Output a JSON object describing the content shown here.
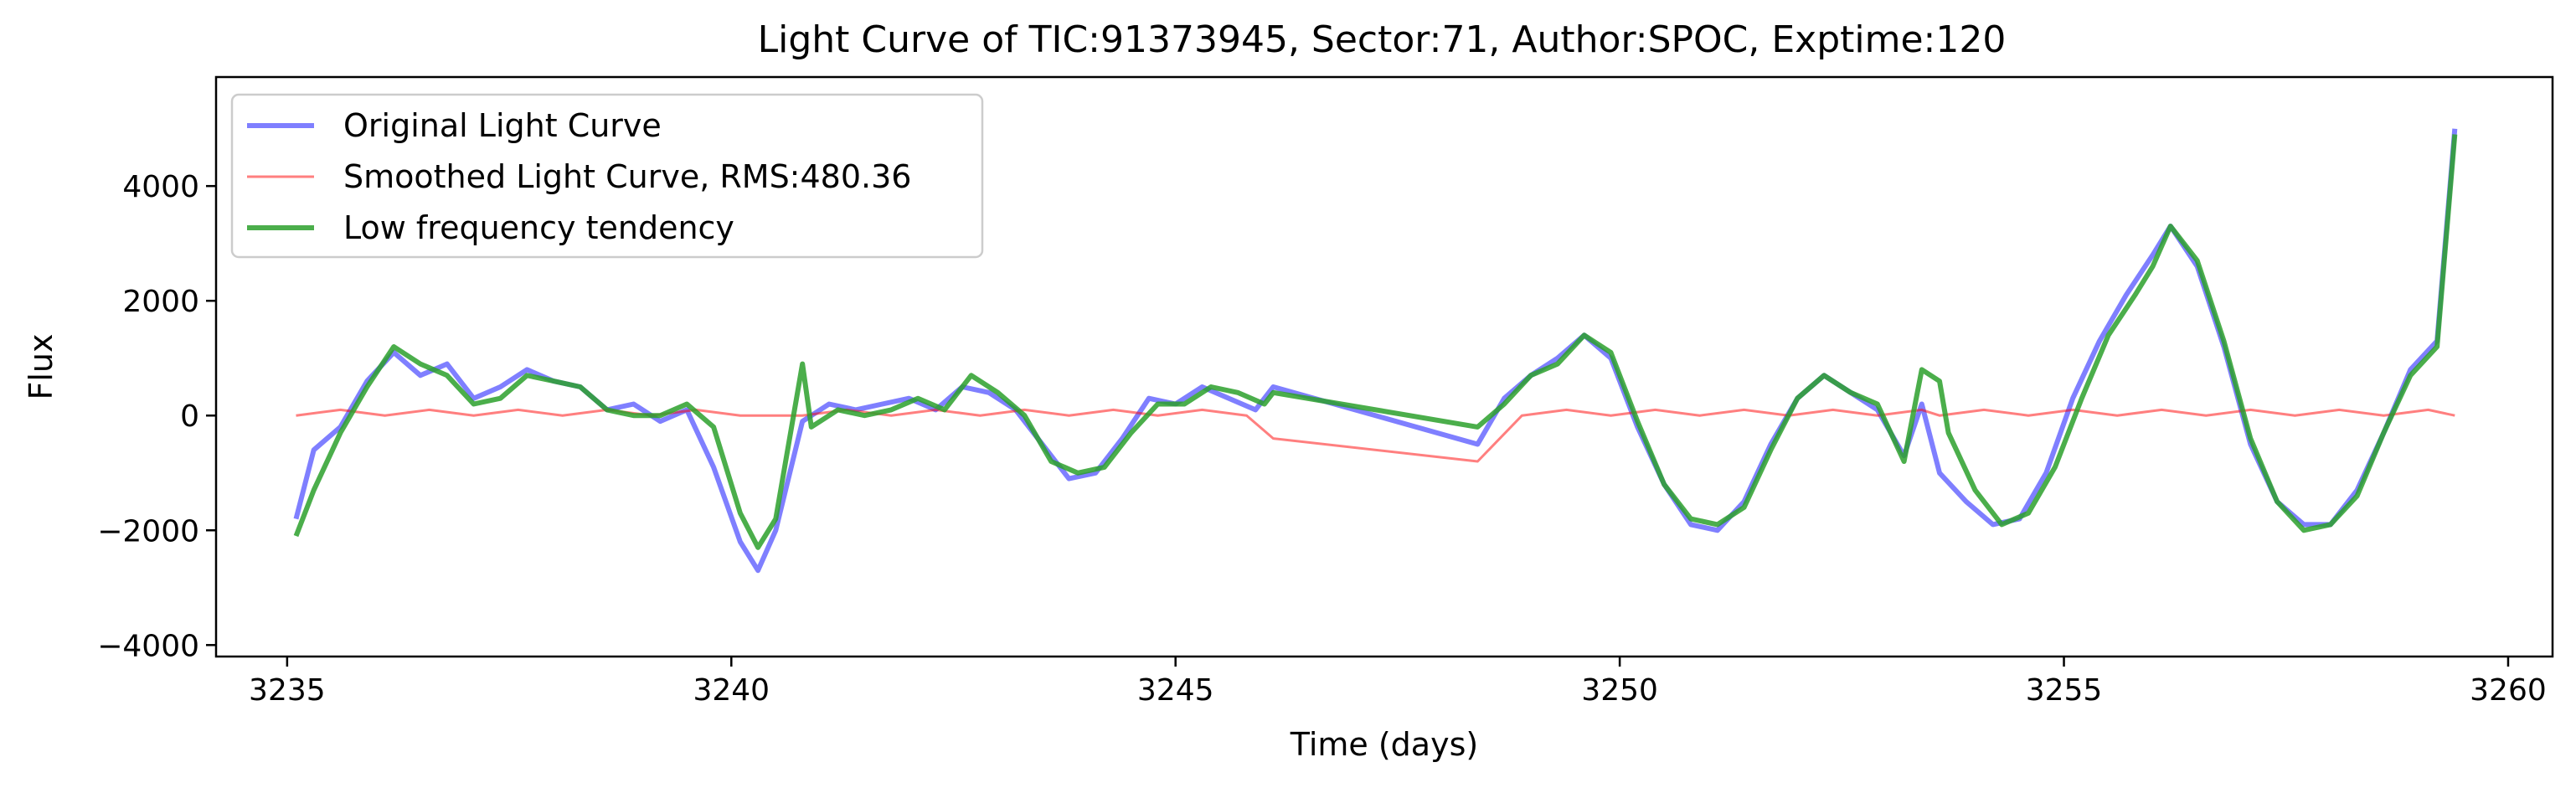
{
  "chart_data": {
    "type": "line",
    "title": "Light Curve of TIC:91373945, Sector:71, Author:SPOC, Exptime:120",
    "xlabel": "Time (days)",
    "ylabel": "Flux",
    "xlim": [
      3234.2,
      3260.5
    ],
    "ylim": [
      -4200,
      5900
    ],
    "xticks": [
      3235,
      3240,
      3245,
      3250,
      3255,
      3260
    ],
    "yticks": [
      -4000,
      -2000,
      0,
      2000,
      4000
    ],
    "grid": false,
    "legend_position": "upper-left",
    "series": [
      {
        "name": "Original Light Curve",
        "color": "#0000ff",
        "points": [
          [
            3235.1,
            -1800
          ],
          [
            3235.3,
            -600
          ],
          [
            3235.6,
            -200
          ],
          [
            3235.9,
            600
          ],
          [
            3236.2,
            1100
          ],
          [
            3236.5,
            700
          ],
          [
            3236.8,
            900
          ],
          [
            3237.1,
            300
          ],
          [
            3237.4,
            500
          ],
          [
            3237.7,
            800
          ],
          [
            3238.0,
            600
          ],
          [
            3238.3,
            500
          ],
          [
            3238.6,
            100
          ],
          [
            3238.9,
            200
          ],
          [
            3239.2,
            -100
          ],
          [
            3239.5,
            100
          ],
          [
            3239.8,
            -900
          ],
          [
            3240.1,
            -2200
          ],
          [
            3240.3,
            -2700
          ],
          [
            3240.5,
            -2000
          ],
          [
            3240.8,
            -100
          ],
          [
            3241.1,
            200
          ],
          [
            3241.4,
            100
          ],
          [
            3241.7,
            200
          ],
          [
            3242.0,
            300
          ],
          [
            3242.3,
            100
          ],
          [
            3242.6,
            500
          ],
          [
            3242.9,
            400
          ],
          [
            3243.2,
            100
          ],
          [
            3243.5,
            -500
          ],
          [
            3243.8,
            -1100
          ],
          [
            3244.1,
            -1000
          ],
          [
            3244.4,
            -400
          ],
          [
            3244.7,
            300
          ],
          [
            3245.0,
            200
          ],
          [
            3245.3,
            500
          ],
          [
            3245.6,
            300
          ],
          [
            3245.9,
            100
          ],
          [
            3246.1,
            500
          ],
          [
            3248.4,
            -500
          ],
          [
            3248.7,
            300
          ],
          [
            3249.0,
            700
          ],
          [
            3249.3,
            1000
          ],
          [
            3249.6,
            1400
          ],
          [
            3249.9,
            1000
          ],
          [
            3250.2,
            -200
          ],
          [
            3250.5,
            -1200
          ],
          [
            3250.8,
            -1900
          ],
          [
            3251.1,
            -2000
          ],
          [
            3251.4,
            -1500
          ],
          [
            3251.7,
            -500
          ],
          [
            3252.0,
            300
          ],
          [
            3252.3,
            700
          ],
          [
            3252.6,
            400
          ],
          [
            3252.9,
            100
          ],
          [
            3253.2,
            -700
          ],
          [
            3253.4,
            200
          ],
          [
            3253.6,
            -1000
          ],
          [
            3253.9,
            -1500
          ],
          [
            3254.2,
            -1900
          ],
          [
            3254.5,
            -1800
          ],
          [
            3254.8,
            -1000
          ],
          [
            3255.1,
            300
          ],
          [
            3255.4,
            1300
          ],
          [
            3255.7,
            2100
          ],
          [
            3256.0,
            2800
          ],
          [
            3256.2,
            3300
          ],
          [
            3256.5,
            2600
          ],
          [
            3256.8,
            1200
          ],
          [
            3257.1,
            -500
          ],
          [
            3257.4,
            -1500
          ],
          [
            3257.7,
            -1900
          ],
          [
            3258.0,
            -1900
          ],
          [
            3258.3,
            -1300
          ],
          [
            3258.6,
            -300
          ],
          [
            3258.9,
            800
          ],
          [
            3259.2,
            1300
          ],
          [
            3259.4,
            5000
          ]
        ]
      },
      {
        "name": "Smoothed Light Curve, RMS:480.36",
        "color": "#ff0000",
        "points": [
          [
            3235.1,
            0
          ],
          [
            3235.6,
            100
          ],
          [
            3236.1,
            0
          ],
          [
            3236.6,
            100
          ],
          [
            3237.1,
            0
          ],
          [
            3237.6,
            100
          ],
          [
            3238.1,
            0
          ],
          [
            3238.6,
            100
          ],
          [
            3239.1,
            0
          ],
          [
            3239.6,
            100
          ],
          [
            3240.1,
            0
          ],
          [
            3240.5,
            0
          ],
          [
            3240.8,
            0
          ],
          [
            3241.3,
            100
          ],
          [
            3241.8,
            0
          ],
          [
            3242.3,
            100
          ],
          [
            3242.8,
            0
          ],
          [
            3243.3,
            100
          ],
          [
            3243.8,
            0
          ],
          [
            3244.3,
            100
          ],
          [
            3244.8,
            0
          ],
          [
            3245.3,
            100
          ],
          [
            3245.8,
            0
          ],
          [
            3246.1,
            -400
          ],
          [
            3248.4,
            -800
          ],
          [
            3248.9,
            0
          ],
          [
            3249.4,
            100
          ],
          [
            3249.9,
            0
          ],
          [
            3250.4,
            100
          ],
          [
            3250.9,
            0
          ],
          [
            3251.4,
            100
          ],
          [
            3251.9,
            0
          ],
          [
            3252.4,
            100
          ],
          [
            3252.9,
            0
          ],
          [
            3253.4,
            100
          ],
          [
            3253.6,
            0
          ],
          [
            3254.1,
            100
          ],
          [
            3254.6,
            0
          ],
          [
            3255.1,
            100
          ],
          [
            3255.6,
            0
          ],
          [
            3256.1,
            100
          ],
          [
            3256.6,
            0
          ],
          [
            3257.1,
            100
          ],
          [
            3257.6,
            0
          ],
          [
            3258.1,
            100
          ],
          [
            3258.6,
            0
          ],
          [
            3259.1,
            100
          ],
          [
            3259.4,
            0
          ]
        ]
      },
      {
        "name": "Low frequency tendency",
        "color": "#2ca02c",
        "points": [
          [
            3235.1,
            -2100
          ],
          [
            3235.3,
            -1300
          ],
          [
            3235.6,
            -300
          ],
          [
            3235.9,
            500
          ],
          [
            3236.2,
            1200
          ],
          [
            3236.5,
            900
          ],
          [
            3236.8,
            700
          ],
          [
            3237.1,
            200
          ],
          [
            3237.4,
            300
          ],
          [
            3237.7,
            700
          ],
          [
            3238.0,
            600
          ],
          [
            3238.3,
            500
          ],
          [
            3238.6,
            100
          ],
          [
            3238.9,
            0
          ],
          [
            3239.2,
            0
          ],
          [
            3239.5,
            200
          ],
          [
            3239.8,
            -200
          ],
          [
            3240.1,
            -1700
          ],
          [
            3240.3,
            -2300
          ],
          [
            3240.5,
            -1800
          ],
          [
            3240.8,
            900
          ],
          [
            3240.9,
            -200
          ],
          [
            3241.2,
            100
          ],
          [
            3241.5,
            0
          ],
          [
            3241.8,
            100
          ],
          [
            3242.1,
            300
          ],
          [
            3242.4,
            100
          ],
          [
            3242.7,
            700
          ],
          [
            3243.0,
            400
          ],
          [
            3243.3,
            0
          ],
          [
            3243.6,
            -800
          ],
          [
            3243.9,
            -1000
          ],
          [
            3244.2,
            -900
          ],
          [
            3244.5,
            -300
          ],
          [
            3244.8,
            200
          ],
          [
            3245.1,
            200
          ],
          [
            3245.4,
            500
          ],
          [
            3245.7,
            400
          ],
          [
            3246.0,
            200
          ],
          [
            3246.1,
            400
          ],
          [
            3248.4,
            -200
          ],
          [
            3248.7,
            200
          ],
          [
            3249.0,
            700
          ],
          [
            3249.3,
            900
          ],
          [
            3249.6,
            1400
          ],
          [
            3249.9,
            1100
          ],
          [
            3250.2,
            -100
          ],
          [
            3250.5,
            -1200
          ],
          [
            3250.8,
            -1800
          ],
          [
            3251.1,
            -1900
          ],
          [
            3251.4,
            -1600
          ],
          [
            3251.7,
            -600
          ],
          [
            3252.0,
            300
          ],
          [
            3252.3,
            700
          ],
          [
            3252.6,
            400
          ],
          [
            3252.9,
            200
          ],
          [
            3253.2,
            -800
          ],
          [
            3253.4,
            800
          ],
          [
            3253.6,
            600
          ],
          [
            3253.7,
            -300
          ],
          [
            3254.0,
            -1300
          ],
          [
            3254.3,
            -1900
          ],
          [
            3254.6,
            -1700
          ],
          [
            3254.9,
            -900
          ],
          [
            3255.2,
            300
          ],
          [
            3255.5,
            1400
          ],
          [
            3255.8,
            2100
          ],
          [
            3256.0,
            2600
          ],
          [
            3256.2,
            3300
          ],
          [
            3256.5,
            2700
          ],
          [
            3256.8,
            1300
          ],
          [
            3257.1,
            -400
          ],
          [
            3257.4,
            -1500
          ],
          [
            3257.7,
            -2000
          ],
          [
            3258.0,
            -1900
          ],
          [
            3258.3,
            -1400
          ],
          [
            3258.6,
            -300
          ],
          [
            3258.9,
            700
          ],
          [
            3259.2,
            1200
          ],
          [
            3259.4,
            4900
          ]
        ]
      }
    ]
  }
}
